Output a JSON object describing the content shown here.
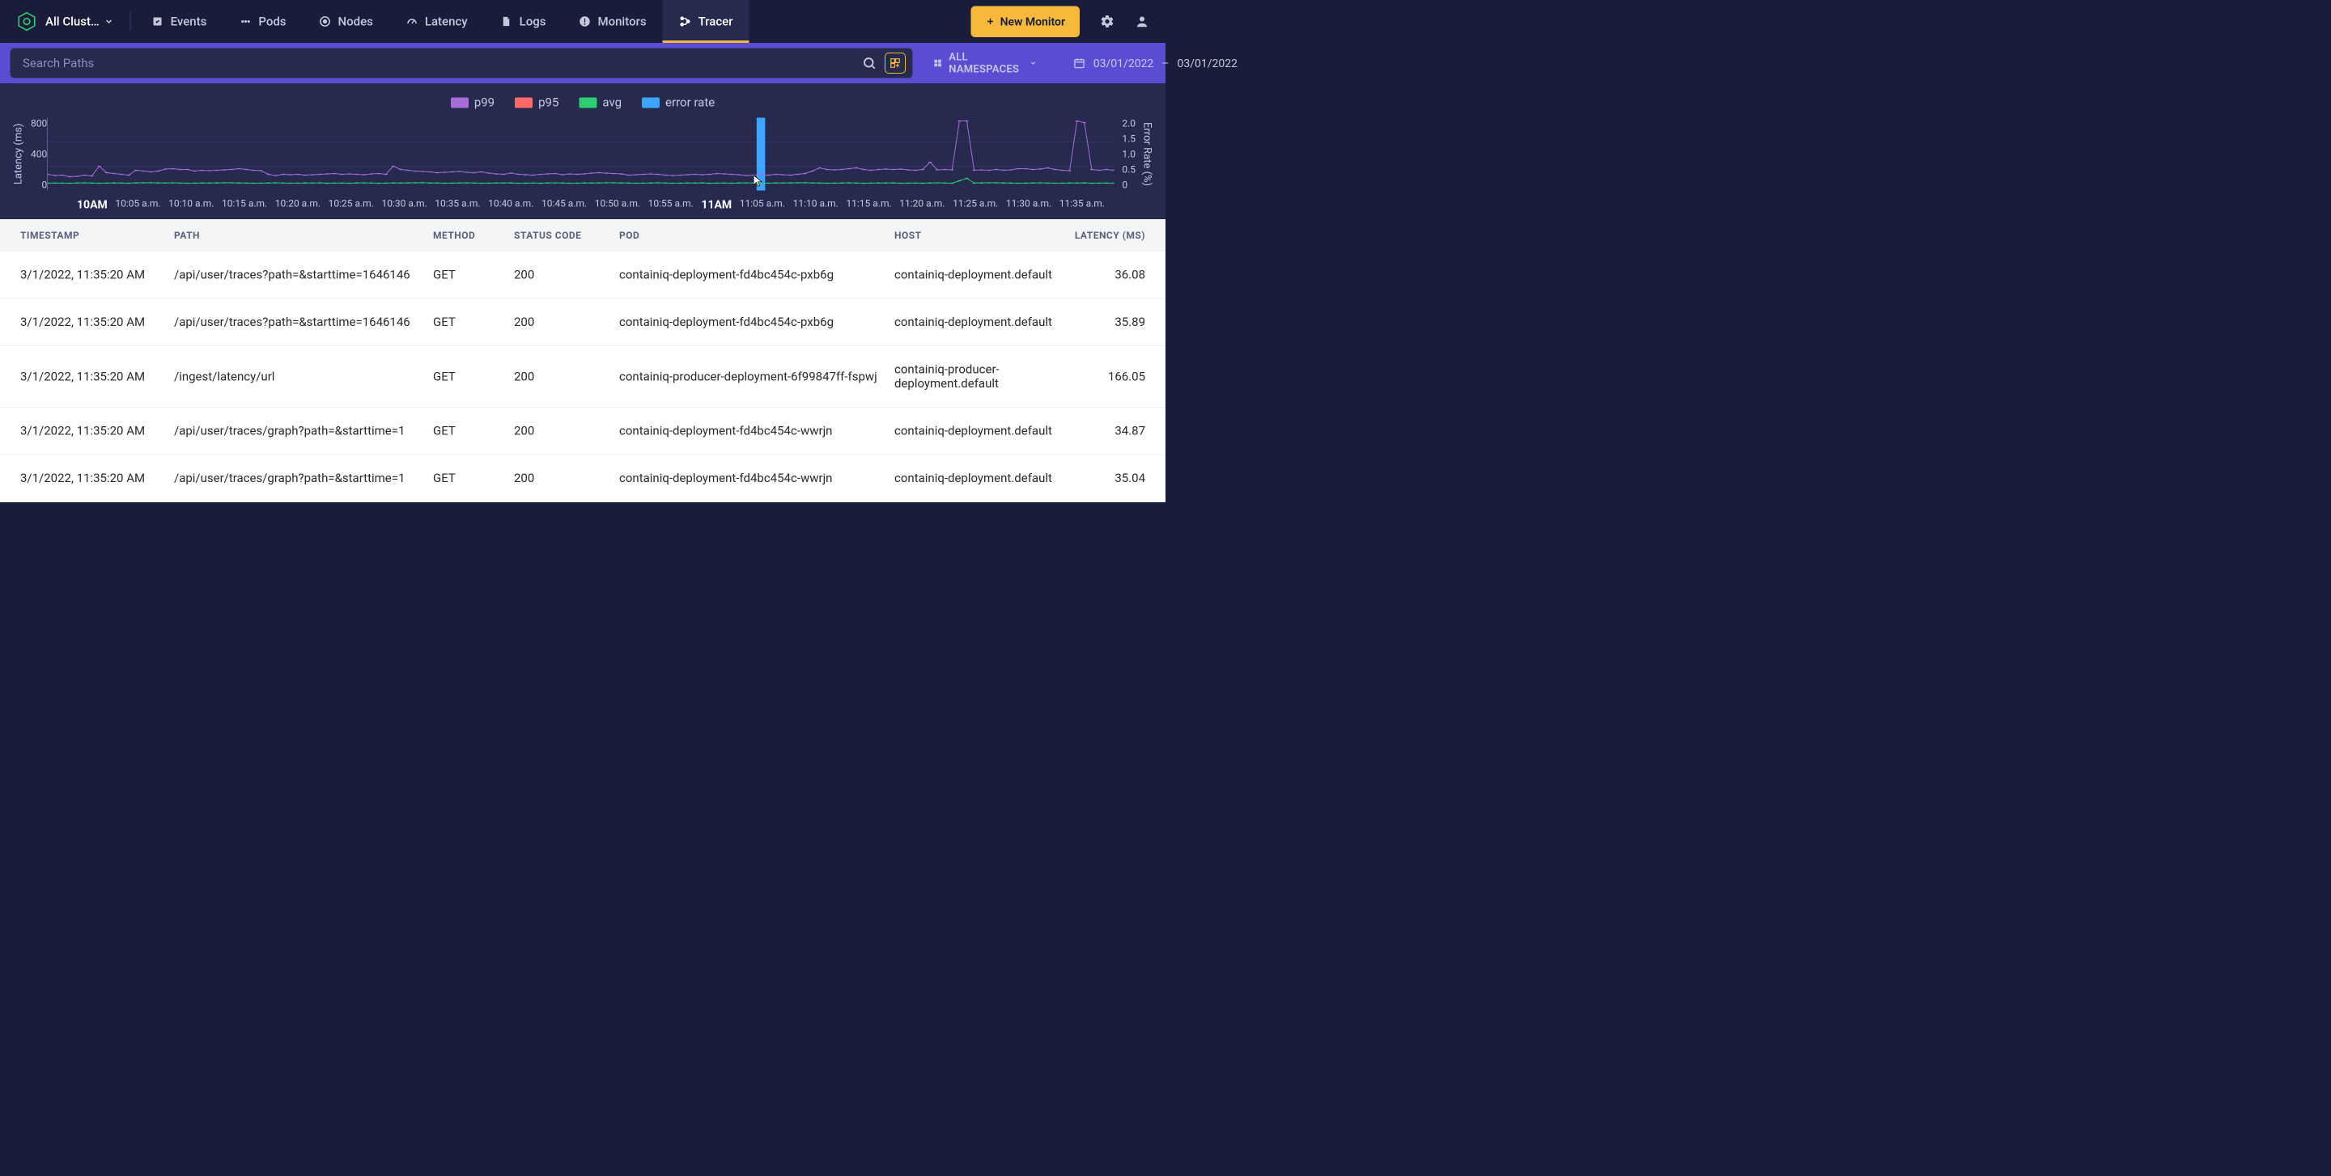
{
  "nav": {
    "cluster_selector": "All Clust…",
    "items": [
      {
        "label": "Events",
        "icon": "events"
      },
      {
        "label": "Pods",
        "icon": "pods"
      },
      {
        "label": "Nodes",
        "icon": "nodes"
      },
      {
        "label": "Latency",
        "icon": "latency"
      },
      {
        "label": "Logs",
        "icon": "logs"
      },
      {
        "label": "Monitors",
        "icon": "monitors"
      },
      {
        "label": "Tracer",
        "icon": "tracer",
        "active": true
      }
    ],
    "new_monitor_label": "New Monitor"
  },
  "filters": {
    "search_placeholder": "Search Paths",
    "namespace_label": "ALL NAMESPACES",
    "date_from": "03/01/2022",
    "date_sep": "–",
    "date_to": "03/01/2022"
  },
  "chart": {
    "legend": [
      {
        "label": "p99",
        "color": "#a86bd8"
      },
      {
        "label": "p95",
        "color": "#fe6a6a"
      },
      {
        "label": "avg",
        "color": "#2ecc71"
      },
      {
        "label": "error rate",
        "color": "#3da5ff"
      }
    ],
    "y_left": {
      "label": "Latency (ms)",
      "ticks": [
        "800",
        "400",
        "0"
      ],
      "min": 0,
      "max": 900
    },
    "y_right": {
      "label": "Error Rate (%)",
      "ticks": [
        "2.0",
        "1.5",
        "1.0",
        "0.5",
        "0"
      ],
      "min": 0,
      "max": 2.0
    },
    "x_ticks": [
      "10AM",
      "10:05 a.m.",
      "10:10 a.m.",
      "10:15 a.m.",
      "10:20 a.m.",
      "10:25 a.m.",
      "10:30 a.m.",
      "10:35 a.m.",
      "10:40 a.m.",
      "10:45 a.m.",
      "10:50 a.m.",
      "10:55 a.m.",
      "11AM",
      "11:05 a.m.",
      "11:10 a.m.",
      "11:15 a.m.",
      "11:20 a.m.",
      "11:25 a.m.",
      "11:30 a.m.",
      "11:35 a.m."
    ],
    "x_bold_indices": [
      0,
      12
    ],
    "grid_color": "#3a3f6d",
    "background_color": "#262a4f",
    "series": {
      "p99": {
        "color": "#a86bd8",
        "line_width": 4,
        "marker": "circle",
        "marker_size": 6,
        "values": [
          200,
          185,
          190,
          170,
          175,
          190,
          180,
          300,
          220,
          210,
          200,
          190,
          250,
          240,
          230,
          240,
          265,
          270,
          260,
          260,
          240,
          250,
          245,
          250,
          255,
          260,
          270,
          260,
          250,
          245,
          200,
          185,
          200,
          195,
          200,
          190,
          195,
          200,
          205,
          210,
          200,
          205,
          200,
          195,
          205,
          210,
          200,
          300,
          260,
          250,
          240,
          235,
          230,
          220,
          225,
          230,
          235,
          225,
          220,
          230,
          215,
          205,
          200,
          215,
          200,
          195,
          190,
          200,
          205,
          210,
          195,
          205,
          200,
          205,
          215,
          220,
          215,
          210,
          205,
          190,
          195,
          200,
          205,
          200,
          190,
          185,
          190,
          195,
          200,
          195,
          200,
          210,
          205,
          200,
          195,
          185,
          190,
          195,
          190,
          200,
          195,
          190,
          200,
          210,
          240,
          280,
          260,
          255,
          260,
          270,
          280,
          260,
          250,
          260,
          265,
          260,
          265,
          255,
          250,
          260,
          350,
          255,
          260,
          255,
          860,
          860,
          250,
          255,
          250,
          260,
          250,
          255,
          270,
          270,
          260,
          265,
          280,
          260,
          250,
          245,
          860,
          840,
          260,
          250,
          260,
          250
        ]
      },
      "avg": {
        "color": "#2ecc71",
        "line_width": 4,
        "marker": "circle",
        "marker_size": 6,
        "values": [
          90,
          92,
          91,
          90,
          93,
          95,
          92,
          90,
          91,
          93,
          92,
          90,
          94,
          95,
          96,
          94,
          93,
          95,
          92,
          90,
          91,
          93,
          92,
          94,
          95,
          96,
          93,
          92,
          90,
          91,
          93,
          95,
          92,
          90,
          91,
          93,
          92,
          94,
          90,
          91,
          92,
          90,
          93,
          95,
          92,
          90,
          91,
          93,
          92,
          94,
          95,
          96,
          93,
          92,
          90,
          91,
          93,
          95,
          92,
          90,
          91,
          93,
          92,
          94,
          90,
          91,
          92,
          90,
          93,
          95,
          92,
          90,
          91,
          93,
          92,
          94,
          95,
          96,
          93,
          92,
          90,
          91,
          93,
          95,
          92,
          90,
          91,
          93,
          92,
          94,
          90,
          91,
          92,
          90,
          93,
          95,
          92,
          90,
          91,
          93,
          92,
          94,
          95,
          96,
          93,
          92,
          90,
          91,
          93,
          95,
          92,
          90,
          91,
          93,
          92,
          94,
          90,
          91,
          92,
          90,
          93,
          95,
          92,
          90,
          120,
          150,
          92,
          94,
          95,
          96,
          93,
          92,
          90,
          91,
          93,
          95,
          92,
          90,
          91,
          93,
          92,
          94,
          90,
          91,
          92,
          90
        ]
      },
      "error_rate": {
        "color": "#3da5ff",
        "type": "bar",
        "bars": [
          {
            "x_index": 97,
            "value": 2.0
          }
        ]
      }
    },
    "cursor_position_pct": 66.0
  },
  "table": {
    "columns": [
      "TIMESTAMP",
      "PATH",
      "METHOD",
      "STATUS CODE",
      "POD",
      "HOST",
      "LATENCY (MS)"
    ],
    "rows": [
      {
        "timestamp": "3/1/2022, 11:35:20 AM",
        "path": "/api/user/traces?path=&starttime=1646146",
        "method": "GET",
        "status": "200",
        "pod": "containiq-deployment-fd4bc454c-pxb6g",
        "host": "containiq-deployment.default",
        "latency": "36.08"
      },
      {
        "timestamp": "3/1/2022, 11:35:20 AM",
        "path": "/api/user/traces?path=&starttime=1646146",
        "method": "GET",
        "status": "200",
        "pod": "containiq-deployment-fd4bc454c-pxb6g",
        "host": "containiq-deployment.default",
        "latency": "35.89"
      },
      {
        "timestamp": "3/1/2022, 11:35:20 AM",
        "path": "/ingest/latency/url",
        "method": "GET",
        "status": "200",
        "pod": "containiq-producer-deployment-6f99847ff-fspwj",
        "host": "containiq-producer-deployment.default",
        "latency": "166.05"
      },
      {
        "timestamp": "3/1/2022, 11:35:20 AM",
        "path": "/api/user/traces/graph?path=&starttime=1",
        "method": "GET",
        "status": "200",
        "pod": "containiq-deployment-fd4bc454c-wwrjn",
        "host": "containiq-deployment.default",
        "latency": "34.87"
      },
      {
        "timestamp": "3/1/2022, 11:35:20 AM",
        "path": "/api/user/traces/graph?path=&starttime=1",
        "method": "GET",
        "status": "200",
        "pod": "containiq-deployment-fd4bc454c-wwrjn",
        "host": "containiq-deployment.default",
        "latency": "35.04"
      }
    ]
  }
}
